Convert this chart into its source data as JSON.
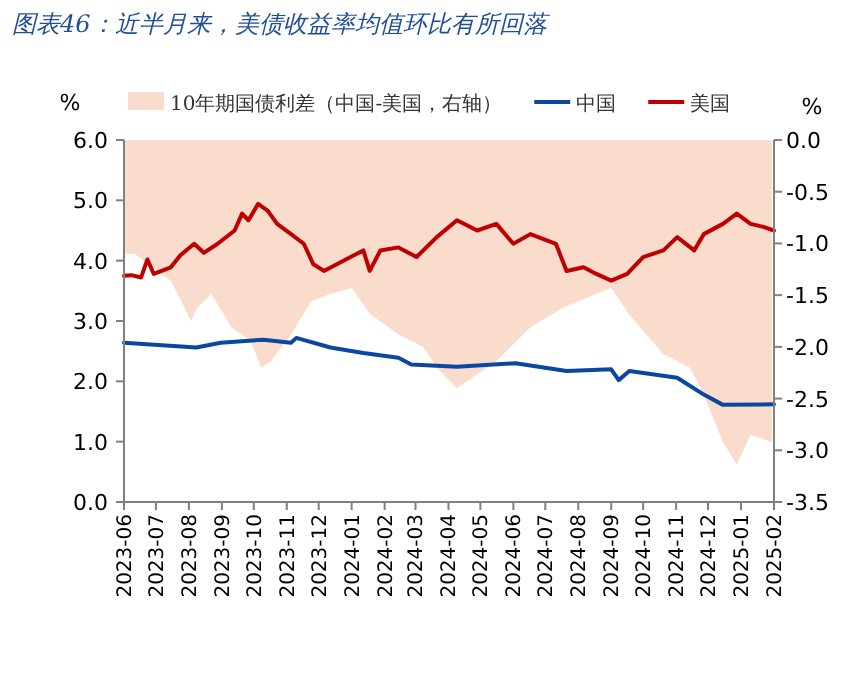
{
  "chart_data": {
    "type": "line",
    "title": "图表46：近半月来，美债收益率均值环比有所回落",
    "ylabel": "%",
    "y2label": "%",
    "xlim": [
      "2023-06-01",
      "2025-02-01"
    ],
    "xticks": [
      {
        "value": "2023-06",
        "label": "2023-06"
      },
      {
        "value": "2023-07",
        "label": "2023-07"
      },
      {
        "value": "2023-08",
        "label": "2023-08"
      },
      {
        "value": "2023-09",
        "label": "2023-09"
      },
      {
        "value": "2023-10",
        "label": "2023-10"
      },
      {
        "value": "2023-11",
        "label": "2023-11"
      },
      {
        "value": "2023-12",
        "label": "2023-12"
      },
      {
        "value": "2024-01",
        "label": "2024-01"
      },
      {
        "value": "2024-02",
        "label": "2024-02"
      },
      {
        "value": "2024-03",
        "label": "2024-03"
      },
      {
        "value": "2024-04",
        "label": "2024-04"
      },
      {
        "value": "2024-05",
        "label": "2024-05"
      },
      {
        "value": "2024-06",
        "label": "2024-06"
      },
      {
        "value": "2024-07",
        "label": "2024-07"
      },
      {
        "value": "2024-08",
        "label": "2024-08"
      },
      {
        "value": "2024-09",
        "label": "2024-09"
      },
      {
        "value": "2024-10",
        "label": "2024-10"
      },
      {
        "value": "2024-11",
        "label": "2024-11"
      },
      {
        "value": "2024-12",
        "label": "2024-12"
      },
      {
        "value": "2025-01",
        "label": "2025-01"
      },
      {
        "value": "2025-02",
        "label": "2025-02"
      }
    ],
    "ylim": [
      0,
      6
    ],
    "yticks": [
      {
        "value": 0,
        "label": "0.0"
      },
      {
        "value": 1,
        "label": "1.0"
      },
      {
        "value": 2,
        "label": "2.0"
      },
      {
        "value": 3,
        "label": "3.0"
      },
      {
        "value": 4,
        "label": "4.0"
      },
      {
        "value": 5,
        "label": "5.0"
      },
      {
        "value": 6,
        "label": "6.0"
      }
    ],
    "y2lim": [
      -3.5,
      0
    ],
    "y2ticks": [
      {
        "value": -3.5,
        "label": "-3.5"
      },
      {
        "value": -3,
        "label": "-3.0"
      },
      {
        "value": -2.5,
        "label": "-2.5"
      },
      {
        "value": -2,
        "label": "-2.0"
      },
      {
        "value": -1.5,
        "label": "-1.5"
      },
      {
        "value": -1,
        "label": "-1.0"
      },
      {
        "value": -0.5,
        "label": "-0.5"
      },
      {
        "value": 0,
        "label": "0.0"
      }
    ],
    "legend": "top",
    "grid": false,
    "series": [
      {
        "name": "10年期国债利差（中国-美国，右轴）",
        "type": "area",
        "axis": "y2",
        "color": "#f9dccb",
        "x": [
          "2023-06-01",
          "2023-06-11",
          "2023-07-15",
          "2023-08-03",
          "2023-08-09",
          "2023-08-22",
          "2023-09-10",
          "2023-09-28",
          "2023-10-08",
          "2023-10-17",
          "2023-11-05",
          "2023-11-24",
          "2023-12-12",
          "2024-01-01",
          "2024-01-19",
          "2024-02-14",
          "2024-03-08",
          "2024-03-21",
          "2024-04-09",
          "2024-05-16",
          "2024-06-17",
          "2024-07-18",
          "2024-08-18",
          "2024-09-01",
          "2024-09-18",
          "2024-10-20",
          "2024-11-14",
          "2024-11-27",
          "2024-12-15",
          "2024-12-28",
          "2025-01-10",
          "2025-01-30"
        ],
        "values": [
          -1.1,
          -1.1,
          -1.36,
          -1.75,
          -1.62,
          -1.49,
          -1.81,
          -1.94,
          -2.2,
          -2.14,
          -1.88,
          -1.56,
          -1.49,
          -1.43,
          -1.69,
          -1.88,
          -2.0,
          -2.2,
          -2.4,
          -2.14,
          -1.81,
          -1.62,
          -1.49,
          -1.43,
          -1.69,
          -2.07,
          -2.2,
          -2.46,
          -2.92,
          -3.14,
          -2.85,
          -2.92
        ]
      },
      {
        "name": "中国",
        "color": "#0b47a1",
        "x": [
          "2023-06-01",
          "2023-08-08",
          "2023-08-31",
          "2023-10-10",
          "2023-11-05",
          "2023-11-10",
          "2023-12-12",
          "2024-01-12",
          "2024-02-14",
          "2024-02-26",
          "2024-04-09",
          "2024-06-03",
          "2024-07-21",
          "2024-09-01",
          "2024-09-08",
          "2024-09-18",
          "2024-11-02",
          "2024-11-27",
          "2024-12-15",
          "2025-02-01"
        ],
        "values": [
          2.64,
          2.56,
          2.64,
          2.69,
          2.64,
          2.72,
          2.56,
          2.47,
          2.39,
          2.28,
          2.24,
          2.3,
          2.17,
          2.2,
          2.02,
          2.17,
          2.06,
          1.78,
          1.61,
          1.62
        ]
      },
      {
        "name": "美国",
        "color": "#c00000",
        "x": [
          "2023-06-01",
          "2023-06-08",
          "2023-06-17",
          "2023-06-23",
          "2023-06-29",
          "2023-07-15",
          "2023-07-24",
          "2023-08-06",
          "2023-08-15",
          "2023-08-28",
          "2023-09-13",
          "2023-09-20",
          "2023-09-26",
          "2023-10-05",
          "2023-10-14",
          "2023-10-23",
          "2023-11-05",
          "2023-11-17",
          "2023-11-26",
          "2023-12-06",
          "2023-12-18",
          "2023-12-31",
          "2024-01-12",
          "2024-01-18",
          "2024-01-28",
          "2024-02-14",
          "2024-03-02",
          "2024-03-21",
          "2024-04-09",
          "2024-04-28",
          "2024-05-16",
          "2024-06-01",
          "2024-06-17",
          "2024-07-11",
          "2024-07-21",
          "2024-08-06",
          "2024-08-18",
          "2024-09-01",
          "2024-09-16",
          "2024-10-01",
          "2024-10-20",
          "2024-11-02",
          "2024-11-18",
          "2024-11-27",
          "2024-12-15",
          "2024-12-28",
          "2025-01-10",
          "2025-01-22",
          "2025-02-01"
        ],
        "values": [
          3.75,
          3.76,
          3.72,
          4.02,
          3.78,
          3.89,
          4.09,
          4.28,
          4.13,
          4.28,
          4.5,
          4.78,
          4.67,
          4.94,
          4.83,
          4.61,
          4.44,
          4.28,
          3.94,
          3.83,
          3.94,
          4.06,
          4.17,
          3.83,
          4.17,
          4.22,
          4.06,
          4.39,
          4.67,
          4.5,
          4.61,
          4.28,
          4.44,
          4.28,
          3.83,
          3.89,
          3.78,
          3.67,
          3.78,
          4.06,
          4.17,
          4.39,
          4.17,
          4.44,
          4.61,
          4.78,
          4.61,
          4.56,
          4.5
        ]
      }
    ]
  }
}
